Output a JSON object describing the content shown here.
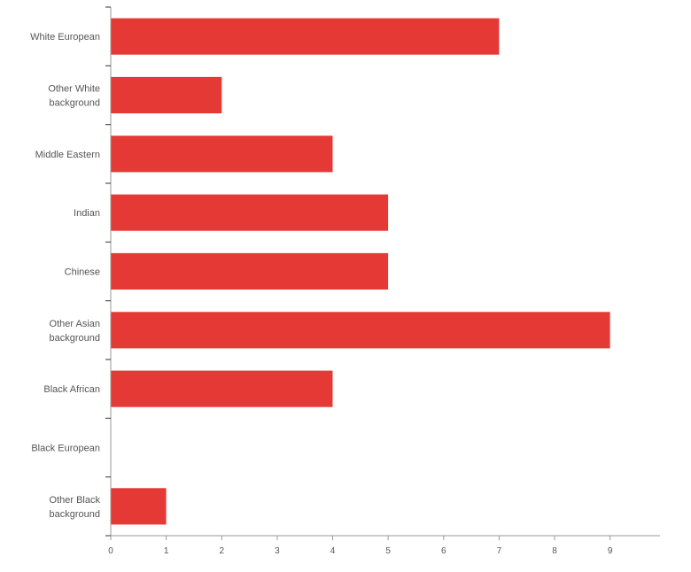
{
  "chart_data": {
    "type": "bar",
    "orientation": "horizontal",
    "categories": [
      "White European",
      "Other White\nbackground",
      "Middle Eastern",
      "Indian",
      "Chinese",
      "Other Asian\nbackground",
      "Black African",
      "Black European",
      "Other Black\nbackground"
    ],
    "values": [
      7,
      2,
      4,
      5,
      5,
      9,
      4,
      0,
      1
    ],
    "xlim": [
      0,
      9.9
    ],
    "xticks": [
      0,
      1,
      2,
      3,
      4,
      5,
      6,
      7,
      8,
      9
    ],
    "grid": false,
    "bar_color": "#e53935",
    "axis_color": "#999999",
    "title": "",
    "xlabel": "",
    "ylabel": ""
  }
}
